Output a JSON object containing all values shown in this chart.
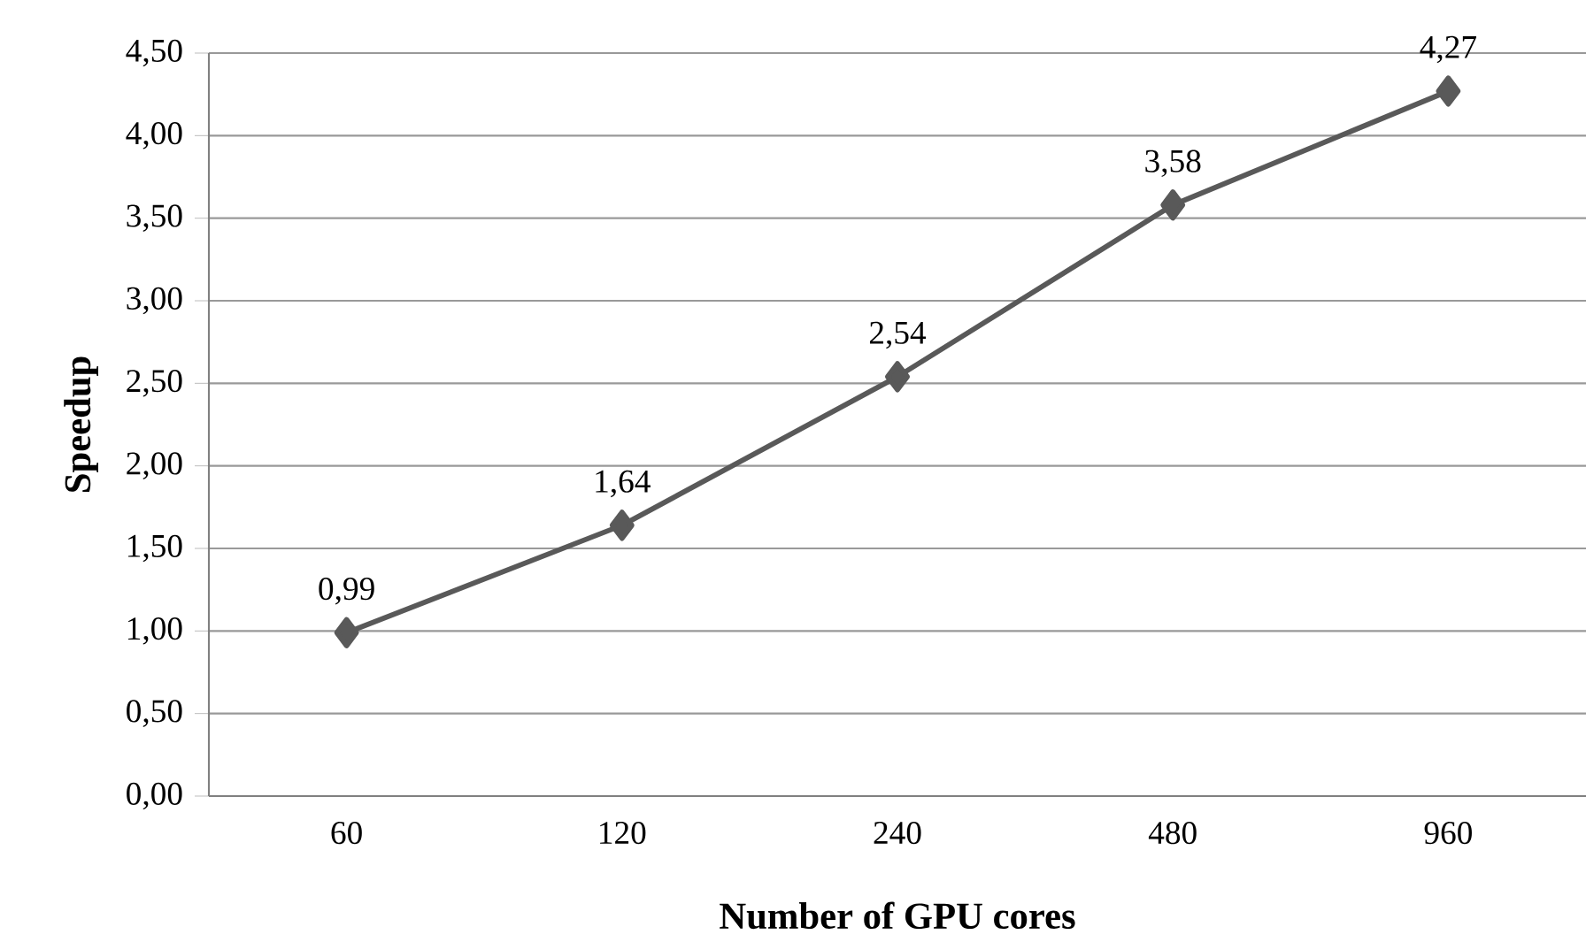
{
  "chart_data": {
    "type": "line",
    "xlabel": "Number of GPU cores",
    "ylabel": "Speedup",
    "categories": [
      "60",
      "120",
      "240",
      "480",
      "960"
    ],
    "series": [
      {
        "color": "#595959",
        "values": [
          0.99,
          1.64,
          2.54,
          3.58,
          4.27
        ],
        "value_labels": [
          "0,99",
          "1,64",
          "2,54",
          "3,58",
          "4,27"
        ]
      }
    ],
    "ylim": [
      0,
      4.5
    ],
    "yticks": [
      {
        "value": 0,
        "label": "0,00"
      },
      {
        "value": 0.5,
        "label": "0,50"
      },
      {
        "value": 1,
        "label": "1,00"
      },
      {
        "value": 1.5,
        "label": "1,50"
      },
      {
        "value": 2,
        "label": "2,00"
      },
      {
        "value": 2.5,
        "label": "2,50"
      },
      {
        "value": 3,
        "label": "3,00"
      },
      {
        "value": 3.5,
        "label": "3,50"
      },
      {
        "value": 4,
        "label": "4,00"
      },
      {
        "value": 4.5,
        "label": "4,50"
      }
    ],
    "grid": "y",
    "marker": "diamond",
    "line_style": "solid"
  }
}
